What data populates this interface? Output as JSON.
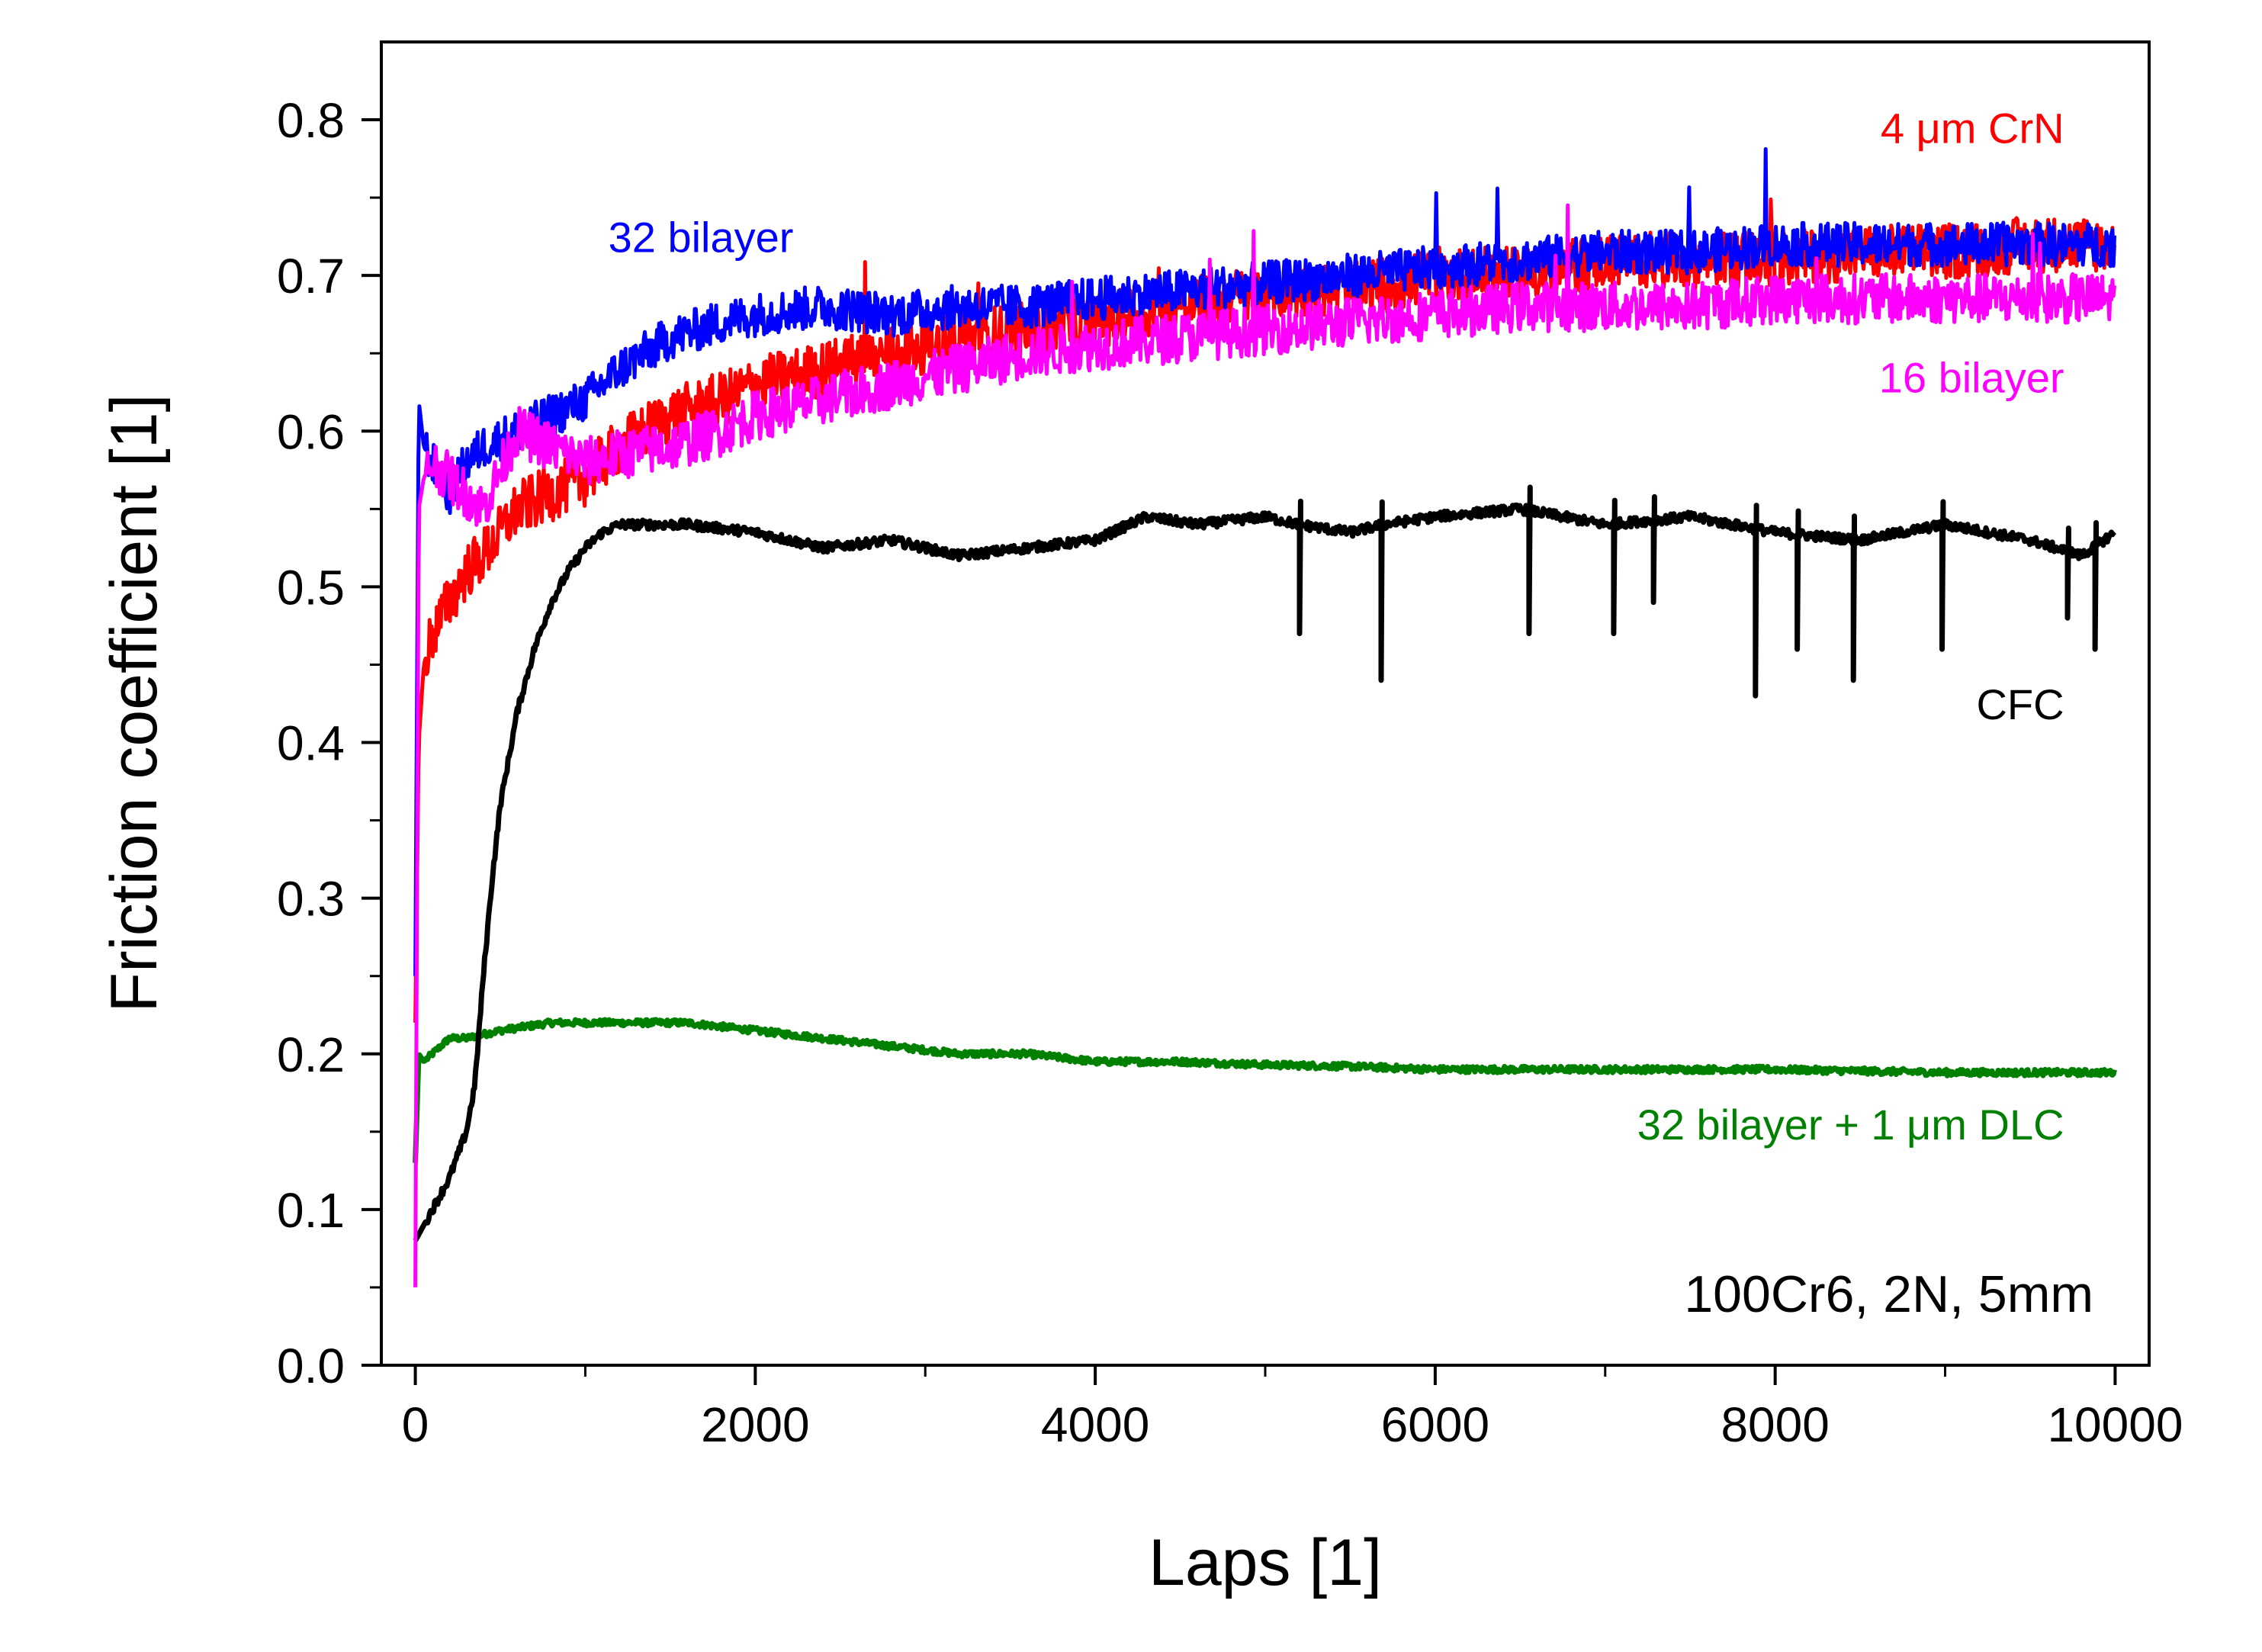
{
  "chart_data": {
    "type": "line",
    "title": "",
    "xlabel": "Laps [1]",
    "ylabel": "Friction coefficient [1]",
    "xlim": [
      -200,
      10200
    ],
    "ylim": [
      0.0,
      0.85
    ],
    "xticks": [
      0,
      2000,
      4000,
      6000,
      8000,
      10000
    ],
    "yticks": [
      0.0,
      0.1,
      0.2,
      0.3,
      0.4,
      0.5,
      0.6,
      0.7,
      0.8
    ],
    "ytick_labels": [
      "0.0",
      "0.1",
      "0.2",
      "0.3",
      "0.4",
      "0.5",
      "0.6",
      "0.7",
      "0.8"
    ],
    "xtick_labels": [
      "0",
      "2000",
      "4000",
      "6000",
      "8000",
      "10000"
    ],
    "grid": false,
    "annotation": "100Cr6, 2N, 5mm",
    "series": [
      {
        "name": "4 μm CrN",
        "color": "#ff0000",
        "noise": 0.018,
        "x": [
          0,
          20,
          50,
          100,
          200,
          300,
          400,
          600,
          800,
          1000,
          1200,
          1500,
          1800,
          2000,
          2400,
          2800,
          3200,
          3600,
          4000,
          4500,
          5000,
          5500,
          6000,
          6500,
          7000,
          7500,
          8000,
          8500,
          9000,
          9500,
          10000
        ],
        "y": [
          0.22,
          0.4,
          0.45,
          0.47,
          0.49,
          0.51,
          0.52,
          0.55,
          0.56,
          0.57,
          0.59,
          0.61,
          0.62,
          0.63,
          0.64,
          0.65,
          0.66,
          0.665,
          0.67,
          0.68,
          0.69,
          0.69,
          0.7,
          0.7,
          0.71,
          0.71,
          0.71,
          0.715,
          0.715,
          0.72,
          0.72
        ]
      },
      {
        "name": "32 bilayer",
        "color": "#0000ff",
        "noise": 0.014,
        "x": [
          0,
          20,
          50,
          100,
          200,
          300,
          400,
          600,
          800,
          1000,
          1200,
          1500,
          1800,
          2000,
          2400,
          2800,
          3200,
          3600,
          4000,
          4500,
          5000,
          5500,
          6000,
          6500,
          7000,
          7500,
          8000,
          8500,
          9000,
          9500,
          10000
        ],
        "y": [
          0.25,
          0.62,
          0.59,
          0.58,
          0.56,
          0.58,
          0.59,
          0.6,
          0.61,
          0.62,
          0.64,
          0.66,
          0.67,
          0.675,
          0.68,
          0.675,
          0.68,
          0.68,
          0.685,
          0.69,
          0.695,
          0.7,
          0.705,
          0.71,
          0.715,
          0.715,
          0.72,
          0.72,
          0.72,
          0.72,
          0.72
        ]
      },
      {
        "name": "16 bilayer",
        "color": "#ff00ff",
        "noise": 0.016,
        "x": [
          0,
          20,
          50,
          100,
          200,
          300,
          400,
          600,
          800,
          1000,
          1200,
          1500,
          1800,
          2000,
          2400,
          2800,
          3200,
          3600,
          4000,
          4500,
          5000,
          5500,
          6000,
          6500,
          7000,
          7500,
          8000,
          8500,
          9000,
          9500,
          10000
        ],
        "y": [
          0.05,
          0.55,
          0.57,
          0.58,
          0.57,
          0.56,
          0.55,
          0.6,
          0.59,
          0.58,
          0.585,
          0.59,
          0.6,
          0.61,
          0.62,
          0.63,
          0.64,
          0.65,
          0.655,
          0.66,
          0.665,
          0.67,
          0.675,
          0.68,
          0.68,
          0.68,
          0.685,
          0.685,
          0.685,
          0.685,
          0.685
        ]
      },
      {
        "name": "CFC",
        "color": "#000000",
        "noise": 0.003,
        "x": [
          0,
          50,
          100,
          200,
          300,
          350,
          400,
          450,
          500,
          600,
          700,
          800,
          900,
          1000,
          1100,
          1200,
          1400,
          1600,
          2000,
          2400,
          2800,
          3200,
          3600,
          4000,
          4300,
          4600,
          5000,
          5200,
          5500,
          5700,
          6000,
          6500,
          7000,
          7500,
          8000,
          8500,
          9000,
          9500,
          9800,
          10000
        ],
        "y": [
          0.08,
          0.09,
          0.1,
          0.12,
          0.15,
          0.18,
          0.25,
          0.31,
          0.36,
          0.42,
          0.46,
          0.49,
          0.51,
          0.525,
          0.535,
          0.54,
          0.54,
          0.54,
          0.535,
          0.525,
          0.53,
          0.52,
          0.525,
          0.53,
          0.545,
          0.54,
          0.545,
          0.54,
          0.535,
          0.54,
          0.545,
          0.55,
          0.54,
          0.545,
          0.535,
          0.53,
          0.54,
          0.53,
          0.52,
          0.535
        ],
        "spikes": [
          [
            5200,
            0.47
          ],
          [
            5680,
            0.44
          ],
          [
            6550,
            0.47
          ],
          [
            7050,
            0.47
          ],
          [
            7280,
            0.49
          ],
          [
            7880,
            0.43
          ],
          [
            8130,
            0.46
          ],
          [
            8460,
            0.44
          ],
          [
            8980,
            0.46
          ],
          [
            9720,
            0.48
          ],
          [
            9880,
            0.46
          ]
        ]
      },
      {
        "name": "32 bilayer + 1 μm DLC",
        "color": "#008000",
        "noise": 0.002,
        "x": [
          0,
          20,
          50,
          100,
          200,
          300,
          500,
          800,
          1000,
          1300,
          1600,
          2000,
          2400,
          2800,
          3200,
          3600,
          4000,
          4500,
          5000,
          5500,
          6000,
          6500,
          7000,
          7500,
          8000,
          8500,
          9000,
          9500,
          10000
        ],
        "y": [
          0.13,
          0.2,
          0.195,
          0.2,
          0.21,
          0.21,
          0.215,
          0.22,
          0.22,
          0.22,
          0.22,
          0.215,
          0.21,
          0.205,
          0.2,
          0.2,
          0.195,
          0.195,
          0.193,
          0.192,
          0.19,
          0.19,
          0.19,
          0.19,
          0.19,
          0.189,
          0.188,
          0.188,
          0.188
        ]
      }
    ],
    "series_labels": [
      {
        "text": "4 μm CrN",
        "color": "#ff0000",
        "at": [
          9700,
          0.785
        ]
      },
      {
        "text": "32 bilayer",
        "color": "#0000ff",
        "at": [
          1680,
          0.715
        ]
      },
      {
        "text": "16 bilayer",
        "color": "#ff00ff",
        "at": [
          9700,
          0.625
        ]
      },
      {
        "text": "CFC",
        "color": "#000000",
        "at": [
          9700,
          0.415
        ]
      },
      {
        "text": "32 bilayer + 1 μm DLC",
        "color": "#008000",
        "at": [
          9700,
          0.145
        ]
      }
    ]
  }
}
